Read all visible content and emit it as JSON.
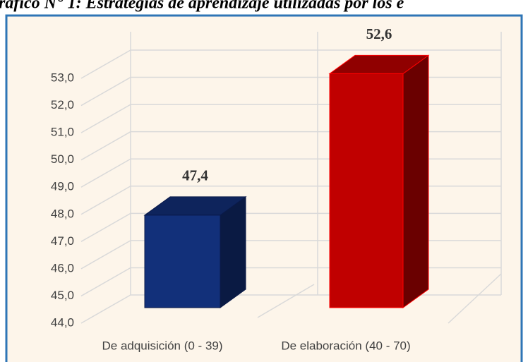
{
  "chart_data": {
    "type": "bar3d",
    "title": "ráfico N° 1: Estrategias de aprendizaje utilizadas por los e",
    "categories": [
      "De adquisición (0 - 39)",
      "De elaboración (40 - 70)"
    ],
    "values": [
      47.4,
      52.6
    ],
    "value_labels": [
      "47,4",
      "52,6"
    ],
    "colors": [
      "#12307a",
      "#c00000"
    ],
    "ylim": [
      44,
      53
    ],
    "yticks": [
      {
        "value": 44,
        "label": "44,0"
      },
      {
        "value": 45,
        "label": "45,0"
      },
      {
        "value": 46,
        "label": "46,0"
      },
      {
        "value": 47,
        "label": "47,0"
      },
      {
        "value": 48,
        "label": "48,0"
      },
      {
        "value": 49,
        "label": "49,0"
      },
      {
        "value": 50,
        "label": "50,0"
      },
      {
        "value": 51,
        "label": "51,0"
      },
      {
        "value": 52,
        "label": "52,0"
      },
      {
        "value": 53,
        "label": "53,0"
      }
    ],
    "grid": true
  }
}
